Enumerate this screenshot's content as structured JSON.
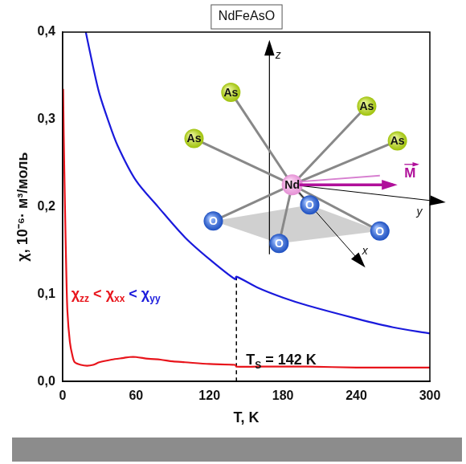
{
  "chart_data": {
    "type": "line",
    "x_label": "T, K",
    "y_label": "χ, 10⁻⁶· м³/моль",
    "xlim": [
      0,
      300
    ],
    "xticks": [
      0,
      60,
      120,
      180,
      240,
      300
    ],
    "ylim": [
      0,
      0.4
    ],
    "yticks": [
      {
        "value": 0,
        "label": "0,0"
      },
      {
        "value": 0.1,
        "label": "0,1"
      },
      {
        "value": 0.2,
        "label": "0,2"
      },
      {
        "value": 0.3,
        "label": "0,3"
      },
      {
        "value": 0.4,
        "label": "0,4"
      }
    ],
    "grid": false,
    "series": [
      {
        "name": "χzz",
        "color": "#e8141b",
        "x": [
          0.5,
          1,
          2,
          3,
          4,
          6,
          8,
          10,
          15,
          20,
          25,
          30,
          40,
          50,
          55,
          60,
          70,
          80,
          90,
          100,
          120,
          141,
          142,
          160,
          180,
          200,
          240,
          270,
          300
        ],
        "values": [
          0.335,
          0.28,
          0.2,
          0.13,
          0.08,
          0.045,
          0.03,
          0.022,
          0.019,
          0.018,
          0.019,
          0.022,
          0.025,
          0.027,
          0.028,
          0.028,
          0.026,
          0.025,
          0.023,
          0.022,
          0.02,
          0.019,
          0.017,
          0.017,
          0.017,
          0.017,
          0.016,
          0.016,
          0.016
        ]
      },
      {
        "name": "χyy",
        "color": "#1a1adc",
        "x": [
          19,
          25,
          30,
          37,
          45,
          60,
          78,
          100,
          120,
          141,
          142,
          160,
          180,
          200,
          240,
          270,
          300
        ],
        "values": [
          0.4,
          0.36,
          0.33,
          0.3,
          0.27,
          0.23,
          0.2,
          0.165,
          0.14,
          0.117,
          0.12,
          0.107,
          0.096,
          0.087,
          0.072,
          0.062,
          0.055
        ]
      }
    ],
    "vline": {
      "x": 142,
      "y": [
        0,
        0.12
      ],
      "line_style": "dashed",
      "color": "#000000"
    },
    "annotations": {
      "transition": [
        {
          "text": "T",
          "sub": "S"
        },
        {
          "text": " = 142 K"
        }
      ],
      "relation": [
        {
          "text": "χ",
          "sub": "zz",
          "color": "#e8141b"
        },
        {
          "text": " < ",
          "color": "#e8141b"
        },
        {
          "text": "χ",
          "sub": "xx",
          "color": "#e8141b"
        },
        {
          "text": " < ",
          "color": "#1a1adc"
        },
        {
          "text": "χ",
          "sub": "yy",
          "color": "#1a1adc"
        }
      ]
    },
    "inset": {
      "title": "NdFeAsO",
      "atoms": [
        "As",
        "As",
        "As",
        "As",
        "Nd",
        "O",
        "O",
        "O",
        "O"
      ],
      "axes": [
        "x",
        "y",
        "z"
      ],
      "vector": "M"
    }
  }
}
